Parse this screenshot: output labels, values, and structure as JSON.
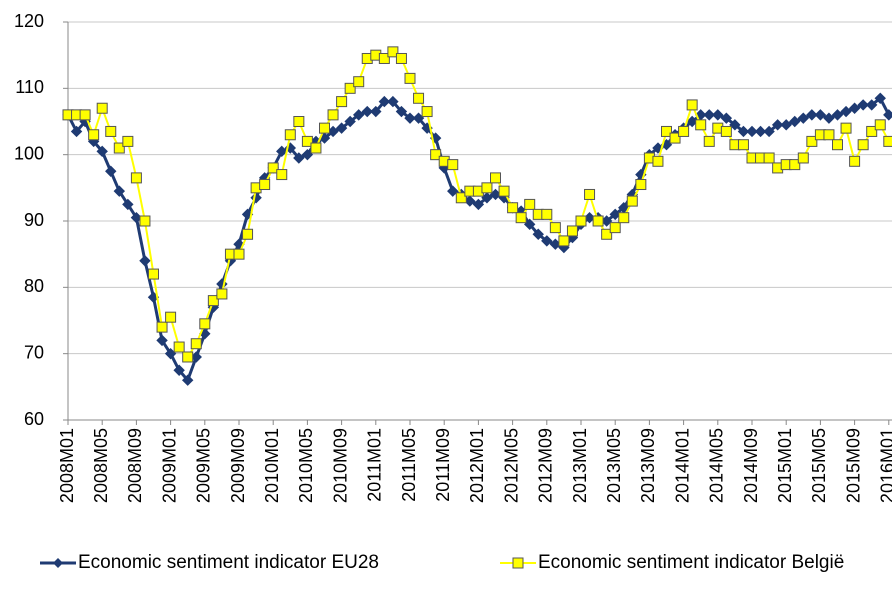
{
  "chart_data": {
    "type": "line",
    "categories": [
      "2008M01",
      null,
      null,
      null,
      "2008M05",
      null,
      null,
      null,
      "2008M09",
      null,
      null,
      null,
      "2009M01",
      null,
      null,
      null,
      "2009M05",
      null,
      null,
      null,
      "2009M09",
      null,
      null,
      null,
      "2010M01",
      null,
      null,
      null,
      "2010M05",
      null,
      null,
      null,
      "2010M09",
      null,
      null,
      null,
      "2011M01",
      null,
      null,
      null,
      "2011M05",
      null,
      null,
      null,
      "2011M09",
      null,
      null,
      null,
      "2012M01",
      null,
      null,
      null,
      "2012M05",
      null,
      null,
      null,
      "2012M09",
      null,
      null,
      null,
      "2013M01",
      null,
      null,
      null,
      "2013M05",
      null,
      null,
      null,
      "2013M09",
      null,
      null,
      null,
      "2014M01",
      null,
      null,
      null,
      "2014M05",
      null,
      null,
      null,
      "2014M09",
      null,
      null,
      null,
      "2015M01",
      null,
      null,
      null,
      "2015M05",
      null,
      null,
      null,
      "2015M09",
      null,
      null,
      null,
      "2016M01"
    ],
    "series": [
      {
        "name": "Economic sentiment indicator EU28",
        "color": "#1f3b73",
        "marker": "diamond",
        "values": [
          106,
          103.5,
          105,
          102,
          100.5,
          97.5,
          94.5,
          92.5,
          90.5,
          84,
          78.5,
          72,
          70,
          67.5,
          66,
          69.5,
          73,
          77,
          80.5,
          84,
          86.5,
          91,
          93.5,
          96.5,
          98,
          100.5,
          101,
          99.5,
          100,
          102,
          102.5,
          103.5,
          104,
          105,
          106,
          106.5,
          106.5,
          108,
          108,
          106.5,
          105.5,
          105.5,
          104,
          102.5,
          98,
          94.5,
          94,
          93,
          92.5,
          93.5,
          94,
          93.5,
          92,
          91.5,
          89.5,
          88,
          87,
          86.5,
          86,
          87.5,
          89.5,
          90.5,
          90.5,
          90,
          91,
          92,
          94,
          97,
          100,
          101,
          101.5,
          103,
          104,
          105,
          106,
          106,
          106,
          105.5,
          104.5,
          103.5,
          103.5,
          103.5,
          103.5,
          104.5,
          104.5,
          105,
          105.5,
          106,
          106,
          105.5,
          106,
          106.5,
          107,
          107.5,
          107.5,
          108.5,
          106
        ]
      },
      {
        "name": "Economic sentiment indicator België",
        "color": "#ffff00",
        "marker": "square",
        "values": [
          106,
          106,
          106,
          103,
          107,
          103.5,
          101,
          102,
          96.5,
          90,
          82,
          74,
          75.5,
          71,
          69.5,
          71.5,
          74.5,
          78,
          79,
          85,
          85,
          88,
          95,
          95.5,
          98,
          97,
          103,
          105,
          102,
          101,
          104,
          106,
          108,
          110,
          111,
          114.5,
          115,
          114.5,
          115.5,
          114.5,
          111.5,
          108.5,
          106.5,
          100,
          99,
          98.5,
          93.5,
          94.5,
          94.5,
          95,
          96.5,
          94.5,
          92,
          90.5,
          92.5,
          91,
          91,
          89,
          87,
          88.5,
          90,
          94,
          90,
          88,
          89,
          90.5,
          93,
          95.5,
          99.5,
          99,
          103.5,
          102.5,
          103.5,
          107.5,
          104.5,
          102,
          104,
          103.5,
          101.5,
          101.5,
          99.5,
          99.5,
          99.5,
          98,
          98.5,
          98.5,
          99.5,
          102,
          103,
          103,
          101.5,
          104,
          99,
          101.5,
          103.5,
          104.5,
          102
        ]
      }
    ],
    "ylim": [
      60,
      120
    ],
    "yticks": [
      60,
      70,
      80,
      90,
      100,
      110,
      120
    ],
    "grid": true,
    "legend": "bottom"
  }
}
